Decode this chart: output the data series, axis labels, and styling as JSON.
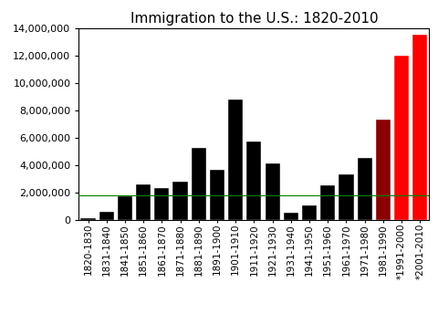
{
  "categories": [
    "1820-1830",
    "1831-1840",
    "1841-1850",
    "1851-1860",
    "1861-1870",
    "1871-1880",
    "1881-1890",
    "1891-1900",
    "1901-1910",
    "1911-1920",
    "1921-1930",
    "1931-1940",
    "1941-1950",
    "1951-1960",
    "1961-1970",
    "1971-1980",
    "1981-1990",
    "*1991-2000",
    "*2001-2010"
  ],
  "values": [
    151000,
    599000,
    1713000,
    2598000,
    2315000,
    2812000,
    5247000,
    3688000,
    8795000,
    5736000,
    4107000,
    528000,
    1035000,
    2515000,
    3322000,
    4493000,
    7338000,
    12000000,
    13500000
  ],
  "bar_colors": [
    "#000000",
    "#000000",
    "#000000",
    "#000000",
    "#000000",
    "#000000",
    "#000000",
    "#000000",
    "#000000",
    "#000000",
    "#000000",
    "#000000",
    "#000000",
    "#000000",
    "#000000",
    "#000000",
    "#8B0000",
    "#ff0000",
    "#ff0000"
  ],
  "title": "Immigration to the U.S.: 1820-2010",
  "ylim": [
    0,
    14000000
  ],
  "yticks": [
    0,
    2000000,
    4000000,
    6000000,
    8000000,
    10000000,
    12000000,
    14000000
  ],
  "hline_y": 1800000,
  "hline_color": "#008000",
  "background_color": "#ffffff",
  "bar_edge_color": "#ffffff",
  "title_fontsize": 11,
  "tick_label_fontsize": 7.5,
  "ytick_label_fontsize": 8
}
